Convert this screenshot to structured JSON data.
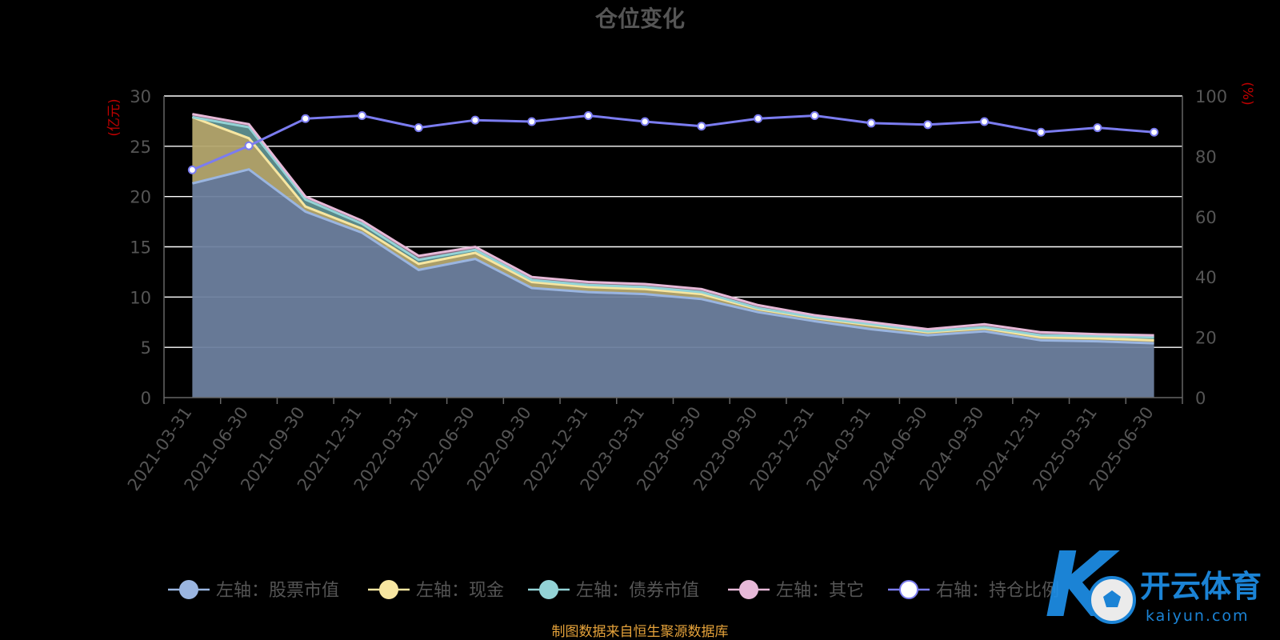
{
  "chart_data": {
    "type": "area",
    "title": "仓位变化",
    "categories": [
      "2021-03-31",
      "2021-06-30",
      "2021-09-30",
      "2021-12-31",
      "2022-03-31",
      "2022-06-30",
      "2022-09-30",
      "2022-12-31",
      "2023-03-31",
      "2023-06-30",
      "2023-09-30",
      "2023-12-31",
      "2024-03-31",
      "2024-06-30",
      "2024-09-30",
      "2024-12-31",
      "2025-03-31",
      "2025-06-30"
    ],
    "left_axis": {
      "unit": "(亿元)",
      "ylim": [
        0,
        30
      ],
      "ticks": [
        "0",
        "5",
        "10",
        "15",
        "20",
        "25",
        "30"
      ]
    },
    "right_axis": {
      "unit": "(%)",
      "ylim": [
        0,
        100
      ],
      "ticks": [
        "0",
        "20",
        "40",
        "60",
        "80",
        "100"
      ]
    },
    "stacked_series": [
      {
        "name": "左轴：股票市值",
        "color": "#9ab5e0",
        "fill": "#6d7f9e",
        "values": [
          21.3,
          22.7,
          18.5,
          16.4,
          12.7,
          13.8,
          10.9,
          10.5,
          10.3,
          9.8,
          8.5,
          7.6,
          6.8,
          6.2,
          6.6,
          5.7,
          5.6,
          5.4
        ]
      },
      {
        "name": "左轴：现金",
        "color": "#f7e6a1",
        "fill": "#b4a66e",
        "values": [
          6.6,
          3.1,
          0.5,
          0.4,
          0.6,
          0.6,
          0.6,
          0.5,
          0.5,
          0.5,
          0.3,
          0.3,
          0.4,
          0.3,
          0.3,
          0.3,
          0.3,
          0.3
        ]
      },
      {
        "name": "左轴：债券市值",
        "color": "#93d3d6",
        "fill": "#5f8f8f",
        "values": [
          0.0,
          1.1,
          0.7,
          0.5,
          0.4,
          0.3,
          0.2,
          0.2,
          0.2,
          0.2,
          0.1,
          0.1,
          0.1,
          0.1,
          0.1,
          0.2,
          0.2,
          0.3
        ]
      },
      {
        "name": "左轴：其它",
        "color": "#e7b9d8",
        "fill": "#8e6e84",
        "values": [
          0.3,
          0.3,
          0.3,
          0.3,
          0.4,
          0.3,
          0.3,
          0.3,
          0.3,
          0.3,
          0.3,
          0.2,
          0.2,
          0.2,
          0.3,
          0.3,
          0.2,
          0.2
        ]
      }
    ],
    "line_series": {
      "name": "右轴：持仓比例",
      "color": "#7b7cf0",
      "values": [
        75.5,
        83.5,
        92.5,
        93.5,
        89.5,
        92.0,
        91.5,
        93.5,
        91.5,
        90.0,
        92.5,
        93.5,
        91.0,
        90.5,
        91.5,
        88.0,
        89.5,
        88.0
      ]
    },
    "legend_position": "bottom",
    "grid": true
  },
  "source_note": "制图数据来自恒生聚源数据库",
  "watermark": {
    "brand": "开云体育",
    "url": "kaiyun.com"
  }
}
